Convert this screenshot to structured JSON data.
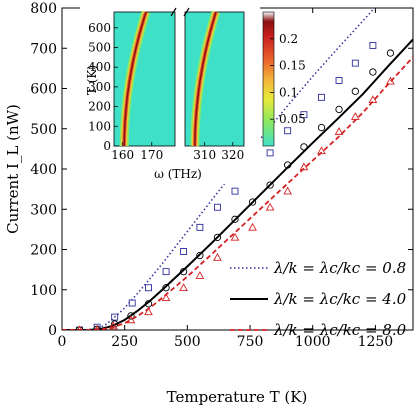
{
  "chart_data": [
    {
      "type": "line",
      "xlabel": "Temperature T (K)",
      "ylabel": "Current I_L (nW)",
      "xlim": [
        0,
        1400
      ],
      "ylim": [
        0,
        800
      ],
      "xticks": [
        0,
        250,
        500,
        750,
        1000,
        1250
      ],
      "yticks": [
        0,
        100,
        200,
        300,
        400,
        500,
        600,
        700,
        800
      ],
      "xtick_labels": [
        "0",
        "250",
        "500",
        "750",
        "1000",
        "1250"
      ],
      "ytick_labels": [
        "0",
        "100",
        "200",
        "300",
        "400",
        "500",
        "600",
        "700",
        "800"
      ],
      "grid": false,
      "legend_position": "bottom-right",
      "series": [
        {
          "name": "λ/k = λc/kc = 0.8",
          "color": "#2e2e9a",
          "line_style": "dotted",
          "marker": "square",
          "line": {
            "x": [
              0,
              75,
              125,
              150,
              175,
              200,
              250,
              300,
              350,
              400,
              450,
              500,
              600,
              700,
              800,
              900,
              1000,
              1100,
              1200,
              1300
            ],
            "y": [
              0,
              0,
              2,
              6,
              14,
              26,
              55,
              90,
              127,
              165,
              205,
              245,
              325,
              405,
              482,
              557,
              630,
              700,
              768,
              837
            ]
          },
          "markers": {
            "x": [
              70,
              140,
              210,
              280,
              345,
              415,
              485,
              550,
              620,
              690,
              760,
              830,
              900,
              965,
              1035,
              1105,
              1170,
              1240
            ],
            "y": [
              0,
              7,
              32,
              67,
              105,
              145,
              195,
              255,
              305,
              345,
              402,
              440,
              495,
              535,
              578,
              620,
              663,
              707
            ]
          }
        },
        {
          "name": "λ/k = λc/kc = 4.0",
          "color": "#000000",
          "line_style": "solid",
          "marker": "circle",
          "line": {
            "x": [
              0,
              100,
              150,
              200,
              250,
              300,
              350,
              400,
              500,
              600,
              700,
              800,
              900,
              1000,
              1100,
              1200,
              1300,
              1400
            ],
            "y": [
              0,
              0,
              2,
              10,
              25,
              47,
              72,
              100,
              158,
              218,
              280,
              342,
              404,
              465,
              525,
              586,
              655,
              722
            ]
          },
          "markers": {
            "x": [
              70,
              140,
              210,
              275,
              345,
              415,
              485,
              550,
              620,
              690,
              760,
              830,
              900,
              965,
              1035,
              1105,
              1170,
              1240,
              1310
            ],
            "y": [
              0,
              2,
              15,
              35,
              65,
              105,
              145,
              185,
              230,
              275,
              318,
              360,
              410,
              455,
              503,
              548,
              593,
              641,
              688
            ]
          }
        },
        {
          "name": "λ/k = λc/kc = 8.0",
          "color": "#d42020",
          "line_style": "dashed",
          "marker": "triangle",
          "line": {
            "x": [
              0,
              100,
              150,
              200,
              250,
              300,
              350,
              400,
              500,
              600,
              700,
              800,
              900,
              1000,
              1100,
              1200,
              1300,
              1400
            ],
            "y": [
              0,
              0,
              1,
              6,
              17,
              34,
              55,
              80,
              133,
              190,
              248,
              306,
              364,
              421,
              478,
              540,
              610,
              678
            ]
          },
          "markers": {
            "x": [
              70,
              140,
              205,
              275,
              345,
              415,
              485,
              550,
              620,
              690,
              760,
              830,
              900,
              965,
              1035,
              1105,
              1170,
              1240,
              1310
            ],
            "y": [
              0,
              1,
              10,
              25,
              45,
              80,
              105,
              135,
              180,
              230,
              255,
              305,
              345,
              405,
              445,
              493,
              530,
              572,
              618
            ]
          }
        }
      ]
    },
    {
      "type": "heatmap",
      "xlabel": "ω (THz)",
      "ylabel": "T (K)",
      "broken_x_axis": true,
      "panels": [
        {
          "xlim": [
            157,
            178
          ],
          "xticks": [
            160,
            170
          ],
          "xtick_labels": [
            "160",
            "170"
          ],
          "ridge_start": 160.5
        },
        {
          "xlim": [
            303,
            324
          ],
          "xticks": [
            310,
            320
          ],
          "xtick_labels": [
            "310",
            "320"
          ],
          "ridge_start": 306.5
        }
      ],
      "ylim": [
        0,
        680
      ],
      "yticks": [
        0,
        100,
        200,
        300,
        400,
        500,
        600
      ],
      "ytick_labels": [
        "0",
        "100",
        "200",
        "300",
        "400",
        "500",
        "600"
      ],
      "colorbar": {
        "range": [
          0,
          0.25
        ],
        "ticks": [
          0.05,
          0.1,
          0.15,
          0.2
        ],
        "tick_labels": [
          "0.05",
          "0.1",
          "0.15",
          "0.2"
        ]
      },
      "background_color": "#3ee0c7"
    }
  ]
}
